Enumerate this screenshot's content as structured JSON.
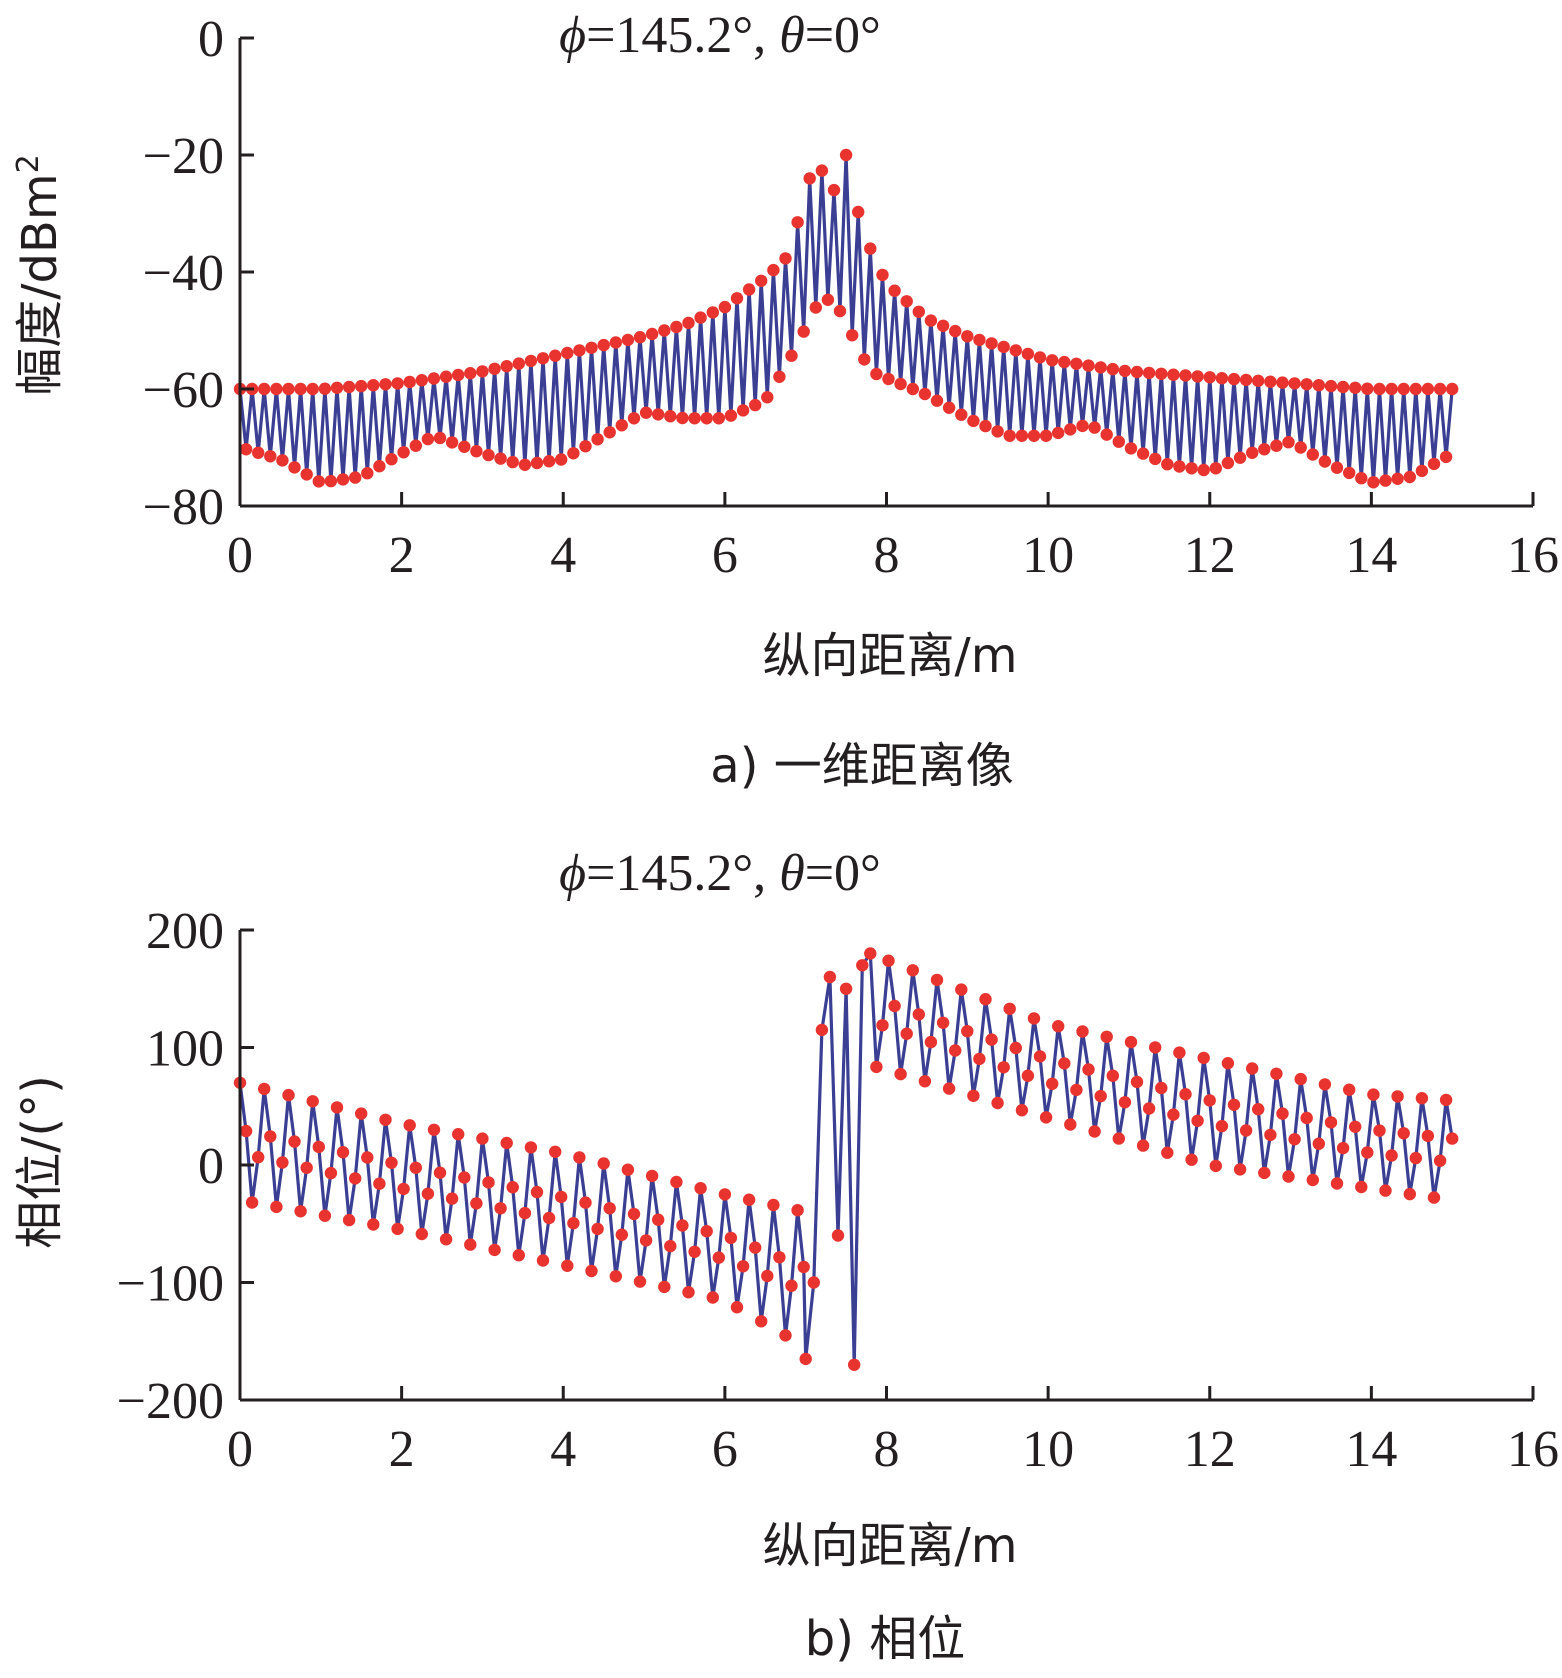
{
  "chart_data": [
    {
      "type": "line",
      "title_symbol_phi": "ϕ",
      "title_part1": "=145.2°, ",
      "title_symbol_theta": "θ",
      "title_part2": "=0°",
      "xlabel": "纵向距离/m",
      "ylabel": "幅度/dBm",
      "ylabel_superscript": "2",
      "caption": "a) 一维距离像",
      "xlim": [
        0,
        16
      ],
      "ylim": [
        -80,
        0
      ],
      "xticks": [
        "0",
        "2",
        "4",
        "6",
        "8",
        "10",
        "12",
        "14",
        "16"
      ],
      "yticks": [
        "0",
        "−20",
        "−40",
        "−60",
        "−80"
      ],
      "grid": false,
      "line_color": "#3b3f94",
      "marker_color": "#e8332f",
      "upper_envelope": {
        "x": [
          0.0,
          1.0,
          2.0,
          3.0,
          4.0,
          5.0,
          5.5,
          6.0,
          6.5,
          6.8,
          7.0,
          7.15,
          7.3,
          7.5,
          7.7,
          8.0,
          8.5,
          9.0,
          10.0,
          11.0,
          12.0,
          13.0,
          14.0,
          15.0
        ],
        "y": [
          -60,
          -60,
          -59,
          -57,
          -54,
          -51,
          -49,
          -46,
          -41,
          -37,
          -26,
          -20,
          -28,
          -20,
          -33,
          -42,
          -48,
          -51,
          -55,
          -57,
          -58,
          -59,
          -60,
          -60
        ]
      },
      "lower_envelope": {
        "x": [
          0.0,
          0.5,
          1.0,
          1.5,
          2.0,
          2.4,
          3.0,
          3.5,
          4.0,
          4.5,
          5.0,
          5.5,
          6.0,
          6.5,
          6.8,
          7.2,
          7.4,
          7.8,
          8.5,
          9.0,
          9.5,
          10.0,
          10.5,
          11.0,
          11.5,
          12.0,
          12.5,
          13.0,
          13.5,
          14.0,
          14.5,
          15.0
        ],
        "y": [
          -70,
          -72,
          -76,
          -75,
          -71,
          -68,
          -71,
          -73,
          -72,
          -68,
          -64,
          -65,
          -65,
          -62,
          -55,
          -44,
          -46,
          -57,
          -61,
          -65,
          -68,
          -68,
          -66,
          -70,
          -73,
          -74,
          -71,
          -69,
          -73,
          -76,
          -75,
          -71
        ]
      }
    },
    {
      "type": "line",
      "title_symbol_phi": "ϕ",
      "title_part1": "=145.2°, ",
      "title_symbol_theta": "θ",
      "title_part2": "=0°",
      "xlabel": "纵向距离/m",
      "ylabel": "相位/(°)",
      "caption": "b) 相位",
      "xlim": [
        0,
        16
      ],
      "ylim": [
        -200,
        200
      ],
      "xticks": [
        "0",
        "2",
        "4",
        "6",
        "8",
        "10",
        "12",
        "14",
        "16"
      ],
      "yticks": [
        "200",
        "100",
        "0",
        "−100",
        "−200"
      ],
      "grid": false,
      "line_color": "#3b3f94",
      "marker_color": "#e8332f",
      "segment1_upper": {
        "x": [
          0.0,
          2.0,
          4.0,
          6.0,
          7.0
        ],
        "y": [
          70,
          35,
          10,
          -25,
          -40
        ]
      },
      "segment1_lower": {
        "x": [
          0.0,
          2.0,
          4.0,
          6.0,
          7.0
        ],
        "y": [
          -30,
          -55,
          -85,
          -115,
          -155
        ]
      },
      "segment2_upper": {
        "x": [
          7.8,
          10.0,
          12.0,
          14.0,
          15.0
        ],
        "y": [
          180,
          120,
          90,
          60,
          55
        ]
      },
      "segment2_lower": {
        "x": [
          7.8,
          10.0,
          12.0,
          14.0,
          15.0
        ],
        "y": [
          85,
          40,
          0,
          -20,
          -30
        ]
      },
      "transition": {
        "x": [
          7.0,
          7.1,
          7.2,
          7.3,
          7.4,
          7.5,
          7.6,
          7.7,
          7.8
        ],
        "y": [
          -165,
          -100,
          115,
          160,
          -60,
          150,
          -170,
          170,
          180
        ]
      }
    }
  ]
}
